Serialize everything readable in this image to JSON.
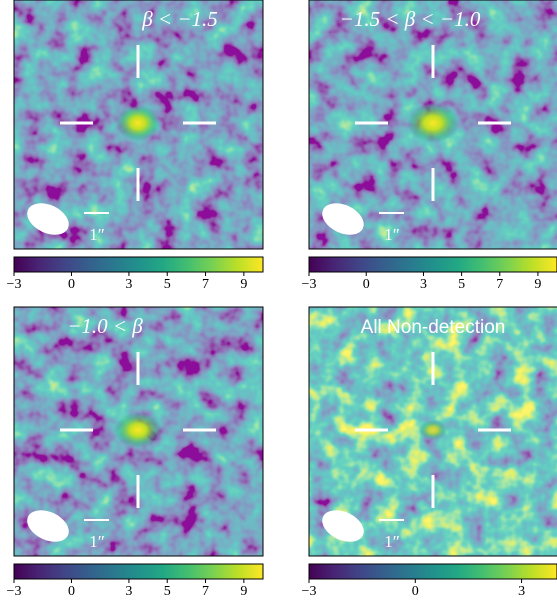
{
  "chart_data": [
    {
      "type": "image",
      "title": "β < −1.5",
      "scale_label": "1″",
      "clim": [
        -3,
        10
      ],
      "cticks": [
        {
          "value": -3,
          "label": "−3"
        },
        0,
        3,
        5,
        7,
        9
      ]
    },
    {
      "type": "image",
      "title": "−1.5 < β < −1.0",
      "scale_label": "1″",
      "clim": [
        -3,
        10
      ],
      "cticks": [
        {
          "value": -3,
          "label": "−3"
        },
        0,
        3,
        5,
        7,
        9
      ]
    },
    {
      "type": "image",
      "title": "−1.0 < β",
      "scale_label": "1″",
      "clim": [
        -3,
        10
      ],
      "cticks": [
        {
          "value": -3,
          "label": "−3"
        },
        0,
        3,
        5,
        7,
        9
      ]
    },
    {
      "type": "image",
      "title": "All Non-detection",
      "scale_label": "1″",
      "clim": [
        -3,
        4
      ],
      "cticks": [
        {
          "value": -3,
          "label": "−3"
        },
        0,
        3
      ]
    }
  ]
}
